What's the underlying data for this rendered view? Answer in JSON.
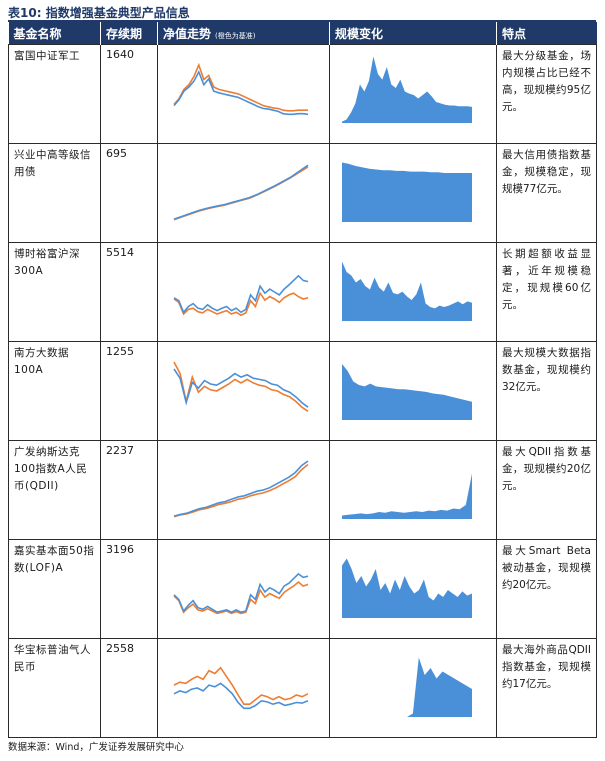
{
  "caption": {
    "label": "表10:",
    "title": "指数增强基金典型产品信息"
  },
  "headers": {
    "name": "基金名称",
    "duration": "存续期",
    "nav_trend": "净值走势",
    "nav_note": "(橙色为基准)",
    "scale": "规模变化",
    "feature": "特点"
  },
  "colors": {
    "header_bg": "#1f3a68",
    "nav_line": "#4a90d9",
    "benchmark_line": "#ed7d31",
    "scale_area": "#4a90d9"
  },
  "funds": [
    {
      "name": "富国中证军工",
      "duration": "1640",
      "nav": [
        0.3,
        0.4,
        0.55,
        0.62,
        0.72,
        0.88,
        0.66,
        0.76,
        0.55,
        0.52,
        0.5,
        0.48,
        0.46,
        0.44,
        0.4,
        0.36,
        0.32,
        0.28,
        0.25,
        0.24,
        0.22,
        0.2,
        0.16,
        0.15,
        0.15,
        0.16,
        0.16,
        0.15
      ],
      "benchmark": [
        0.32,
        0.42,
        0.58,
        0.66,
        0.8,
        1.0,
        0.75,
        0.82,
        0.62,
        0.58,
        0.56,
        0.54,
        0.52,
        0.5,
        0.46,
        0.42,
        0.38,
        0.34,
        0.3,
        0.28,
        0.26,
        0.25,
        0.22,
        0.21,
        0.21,
        0.22,
        0.22,
        0.22
      ],
      "scale": [
        0.02,
        0.05,
        0.15,
        0.28,
        0.55,
        0.45,
        0.6,
        0.95,
        0.7,
        0.62,
        0.8,
        0.55,
        0.5,
        0.62,
        0.45,
        0.42,
        0.4,
        0.35,
        0.4,
        0.45,
        0.38,
        0.3,
        0.28,
        0.26,
        0.25,
        0.25,
        0.24,
        0.24,
        0.24,
        0.23
      ],
      "feature": "最大分级基金，场内规模占比已经不高，现规模约95亿元。"
    },
    {
      "name": "兴业中高等级信用债",
      "duration": "695",
      "nav": [
        0.05,
        0.1,
        0.15,
        0.2,
        0.24,
        0.27,
        0.3,
        0.34,
        0.38,
        0.42,
        0.48,
        0.55,
        0.62,
        0.7,
        0.78,
        0.88,
        0.98
      ],
      "benchmark": [
        0.04,
        0.09,
        0.14,
        0.19,
        0.23,
        0.26,
        0.29,
        0.33,
        0.37,
        0.41,
        0.47,
        0.54,
        0.61,
        0.69,
        0.77,
        0.86,
        0.95
      ],
      "scale": [
        0.85,
        0.83,
        0.8,
        0.78,
        0.76,
        0.75,
        0.74,
        0.74,
        0.73,
        0.73,
        0.72,
        0.72,
        0.72,
        0.71,
        0.71,
        0.7,
        0.7,
        0.7,
        0.7,
        0.7
      ],
      "feature": "最大信用债指数基金，规模稳定，现规模77亿元。"
    },
    {
      "name": "博时裕富沪深300A",
      "duration": "5514",
      "nav": [
        0.4,
        0.35,
        0.15,
        0.25,
        0.3,
        0.22,
        0.2,
        0.28,
        0.22,
        0.18,
        0.22,
        0.25,
        0.18,
        0.22,
        0.15,
        0.2,
        0.45,
        0.35,
        0.6,
        0.48,
        0.55,
        0.5,
        0.45,
        0.55,
        0.62,
        0.7,
        0.78,
        0.7,
        0.68
      ],
      "benchmark": [
        0.38,
        0.32,
        0.12,
        0.2,
        0.22,
        0.16,
        0.14,
        0.2,
        0.16,
        0.12,
        0.15,
        0.18,
        0.12,
        0.15,
        0.1,
        0.14,
        0.35,
        0.25,
        0.48,
        0.36,
        0.42,
        0.38,
        0.32,
        0.4,
        0.45,
        0.48,
        0.42,
        0.38,
        0.4
      ],
      "scale": [
        0.85,
        0.7,
        0.65,
        0.55,
        0.6,
        0.5,
        0.45,
        0.62,
        0.48,
        0.42,
        0.55,
        0.4,
        0.38,
        0.42,
        0.35,
        0.3,
        0.38,
        0.55,
        0.25,
        0.2,
        0.18,
        0.22,
        0.2,
        0.22,
        0.25,
        0.28,
        0.24,
        0.28,
        0.26
      ],
      "feature": "长期超额收益显著，近年规模稳定，现规模60亿元。"
    },
    {
      "name": "南方大数据100A",
      "duration": "1255",
      "nav": [
        0.88,
        0.72,
        0.3,
        0.65,
        0.55,
        0.68,
        0.62,
        0.6,
        0.66,
        0.72,
        0.8,
        0.74,
        0.78,
        0.72,
        0.7,
        0.68,
        0.62,
        0.6,
        0.52,
        0.48,
        0.4,
        0.3,
        0.22
      ],
      "benchmark": [
        1.0,
        0.8,
        0.32,
        0.74,
        0.48,
        0.58,
        0.52,
        0.5,
        0.56,
        0.62,
        0.7,
        0.64,
        0.7,
        0.64,
        0.6,
        0.58,
        0.52,
        0.5,
        0.44,
        0.4,
        0.32,
        0.22,
        0.15
      ],
      "scale": [
        0.8,
        0.7,
        0.55,
        0.5,
        0.48,
        0.52,
        0.48,
        0.47,
        0.46,
        0.45,
        0.44,
        0.44,
        0.43,
        0.42,
        0.41,
        0.4,
        0.38,
        0.37,
        0.36,
        0.34,
        0.32,
        0.3,
        0.28,
        0.26
      ],
      "feature": "最大规模大数据指数基金，现规模约32亿元。"
    },
    {
      "name": "广发纳斯达克100指数A人民币(QDII)",
      "duration": "2237",
      "nav": [
        0.05,
        0.08,
        0.1,
        0.14,
        0.18,
        0.2,
        0.24,
        0.28,
        0.3,
        0.34,
        0.38,
        0.4,
        0.44,
        0.48,
        0.5,
        0.54,
        0.6,
        0.66,
        0.72,
        0.8,
        0.92,
        1.0
      ],
      "benchmark": [
        0.04,
        0.07,
        0.09,
        0.12,
        0.16,
        0.18,
        0.21,
        0.25,
        0.27,
        0.3,
        0.34,
        0.36,
        0.4,
        0.43,
        0.45,
        0.49,
        0.54,
        0.6,
        0.66,
        0.73,
        0.85,
        0.94
      ],
      "scale": [
        0.05,
        0.06,
        0.07,
        0.08,
        0.07,
        0.08,
        0.1,
        0.09,
        0.11,
        0.1,
        0.09,
        0.1,
        0.11,
        0.1,
        0.12,
        0.11,
        0.13,
        0.12,
        0.15,
        0.14,
        0.2,
        0.65
      ],
      "feature": "最大QDII指数基金，现规模约20亿元。"
    },
    {
      "name": "嘉实基本面50指数(LOF)A",
      "duration": "3196",
      "nav": [
        0.4,
        0.32,
        0.12,
        0.22,
        0.3,
        0.18,
        0.15,
        0.2,
        0.15,
        0.1,
        0.12,
        0.14,
        0.1,
        0.14,
        0.1,
        0.12,
        0.4,
        0.32,
        0.58,
        0.45,
        0.52,
        0.48,
        0.42,
        0.55,
        0.6,
        0.68,
        0.76,
        0.7,
        0.72
      ],
      "benchmark": [
        0.38,
        0.3,
        0.1,
        0.18,
        0.24,
        0.14,
        0.12,
        0.16,
        0.12,
        0.08,
        0.1,
        0.12,
        0.08,
        0.11,
        0.08,
        0.1,
        0.32,
        0.25,
        0.48,
        0.36,
        0.42,
        0.38,
        0.34,
        0.44,
        0.5,
        0.55,
        0.62,
        0.55,
        0.58
      ],
      "scale": [
        0.75,
        0.85,
        0.7,
        0.5,
        0.6,
        0.45,
        0.55,
        0.7,
        0.4,
        0.5,
        0.35,
        0.55,
        0.4,
        0.6,
        0.45,
        0.35,
        0.4,
        0.55,
        0.3,
        0.25,
        0.35,
        0.3,
        0.4,
        0.35,
        0.3,
        0.38,
        0.32,
        0.35
      ],
      "feature": "最大Smart Beta被动基金，现规模约20亿元。"
    },
    {
      "name": "华宝标普油气人民币",
      "duration": "2558",
      "nav": [
        0.4,
        0.45,
        0.42,
        0.48,
        0.5,
        0.45,
        0.55,
        0.52,
        0.58,
        0.5,
        0.4,
        0.25,
        0.15,
        0.15,
        0.2,
        0.28,
        0.26,
        0.22,
        0.25,
        0.2,
        0.22,
        0.25,
        0.24,
        0.28
      ],
      "benchmark": [
        0.55,
        0.6,
        0.58,
        0.65,
        0.7,
        0.65,
        0.8,
        0.75,
        0.85,
        0.7,
        0.55,
        0.38,
        0.22,
        0.22,
        0.3,
        0.38,
        0.35,
        0.3,
        0.35,
        0.3,
        0.32,
        0.38,
        0.35,
        0.4
      ],
      "scale": [
        0,
        0,
        0,
        0,
        0,
        0,
        0,
        0,
        0,
        0,
        0,
        0,
        0.05,
        0.85,
        0.6,
        0.7,
        0.55,
        0.65,
        0.6,
        0.55,
        0.5,
        0.45,
        0.4
      ],
      "feature": "最大海外商品QDII指数基金，现规模约17亿元。"
    }
  ],
  "source": "数据来源：Wind，广发证券发展研究中心"
}
